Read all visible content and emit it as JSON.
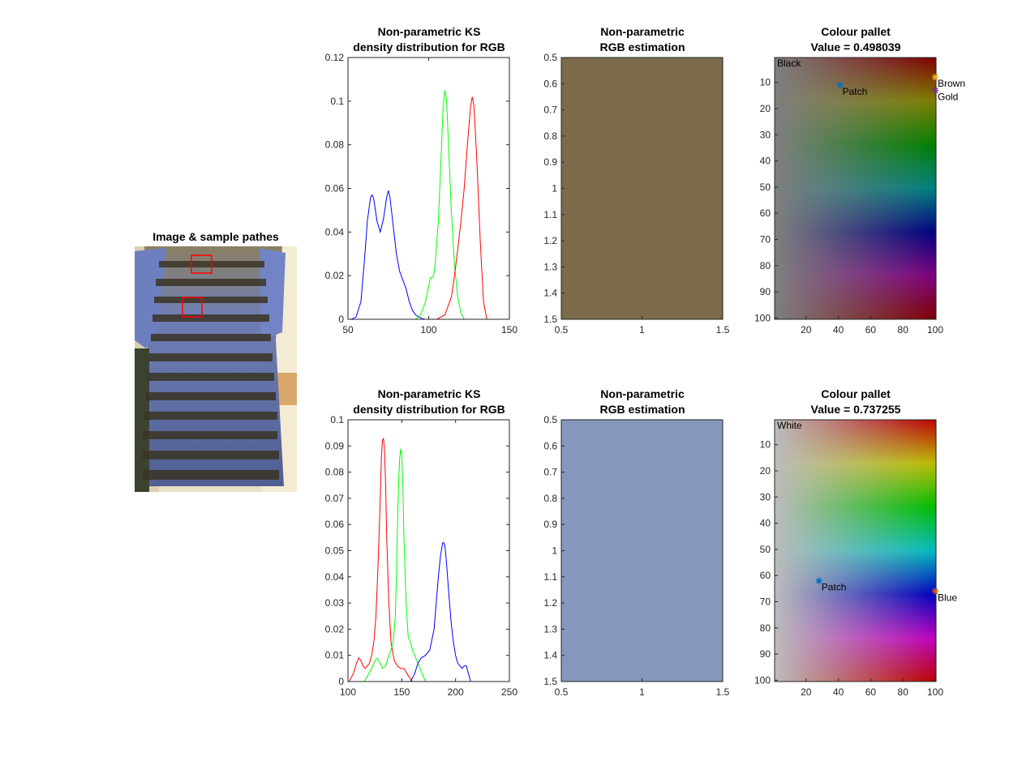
{
  "figure": {
    "image_panel": {
      "title": "Image & sample pathes"
    },
    "rows": [
      {
        "density": {
          "title": [
            "Non-parametric KS",
            "density distribution for RGB"
          ],
          "xlim": [
            50,
            150
          ],
          "ylim": [
            0,
            0.12
          ],
          "xticks": [
            50,
            100,
            150
          ],
          "yticks": [
            0,
            0.02,
            0.04,
            0.06,
            0.08,
            0.1,
            0.12
          ]
        },
        "estimation": {
          "title": [
            "Non-parametric",
            "RGB estimation"
          ],
          "color": "#7b6b4b",
          "xticks": [
            "0.5",
            "1",
            "1.5"
          ],
          "yticks": [
            "0.5",
            "0.6",
            "0.7",
            "0.8",
            "0.9",
            "1",
            "1.1",
            "1.2",
            "1.3",
            "1.4",
            "1.5"
          ]
        },
        "palette": {
          "title_line1": "Colour pallet",
          "title_line2": "Value = 0.498039",
          "value": 0.498039,
          "corner_label": "Black",
          "xticks": [
            "20",
            "40",
            "60",
            "80",
            "100"
          ],
          "yticks": [
            "10",
            "20",
            "30",
            "40",
            "50",
            "60",
            "70",
            "80",
            "90",
            "100"
          ],
          "markers": [
            {
              "label": "Patch",
              "x": 41,
              "y": 11,
              "color": "#0072bd"
            },
            {
              "label": "Brown",
              "x": 100,
              "y": 8,
              "color": "#edb120"
            },
            {
              "label": "Gold",
              "x": 100,
              "y": 13,
              "color": "#7e2f8e"
            }
          ]
        }
      },
      {
        "density": {
          "title": [
            "Non-parametric KS",
            "density distribution for RGB"
          ],
          "xlim": [
            100,
            250
          ],
          "ylim": [
            0,
            0.1
          ],
          "xticks": [
            100,
            150,
            200,
            250
          ],
          "yticks": [
            0,
            0.01,
            0.02,
            0.03,
            0.04,
            0.05,
            0.06,
            0.07,
            0.08,
            0.09,
            0.1
          ]
        },
        "estimation": {
          "title": [
            "Non-parametric",
            "RGB estimation"
          ],
          "color": "#8697bd",
          "xticks": [
            "0.5",
            "1",
            "1.5"
          ],
          "yticks": [
            "0.5",
            "0.6",
            "0.7",
            "0.8",
            "0.9",
            "1",
            "1.1",
            "1.2",
            "1.3",
            "1.4",
            "1.5"
          ]
        },
        "palette": {
          "title_line1": "Colour pallet",
          "title_line2": "Value = 0.737255",
          "value": 0.737255,
          "corner_label": "White",
          "xticks": [
            "20",
            "40",
            "60",
            "80",
            "100"
          ],
          "yticks": [
            "10",
            "20",
            "30",
            "40",
            "50",
            "60",
            "70",
            "80",
            "90",
            "100"
          ],
          "markers": [
            {
              "label": "Patch",
              "x": 28,
              "y": 62,
              "color": "#0072bd"
            },
            {
              "label": "Blue",
              "x": 100,
              "y": 66,
              "color": "#d95319"
            }
          ]
        }
      }
    ]
  },
  "chart_data": [
    {
      "type": "line",
      "title": "Non-parametric KS density distribution for RGB",
      "xlim": [
        50,
        150
      ],
      "ylim": [
        0,
        0.12
      ],
      "series": [
        {
          "color": "#0000ff",
          "x": [
            52,
            55,
            58,
            60,
            62,
            64,
            65,
            66,
            68,
            70,
            72,
            74,
            75,
            76,
            78,
            80,
            82,
            84,
            86,
            88,
            90,
            92,
            94,
            96,
            98
          ],
          "y": [
            0,
            0.001,
            0.008,
            0.025,
            0.045,
            0.056,
            0.057,
            0.055,
            0.045,
            0.04,
            0.046,
            0.056,
            0.059,
            0.056,
            0.043,
            0.03,
            0.022,
            0.018,
            0.014,
            0.008,
            0.004,
            0.002,
            0.001,
            0.0003,
            0
          ]
        },
        {
          "color": "#00ff00",
          "x": [
            92,
            95,
            98,
            100,
            101,
            102,
            103,
            104,
            106,
            108,
            109,
            110,
            111,
            112,
            114,
            116,
            118,
            120,
            122
          ],
          "y": [
            0,
            0.002,
            0.008,
            0.015,
            0.019,
            0.019,
            0.02,
            0.025,
            0.045,
            0.08,
            0.098,
            0.105,
            0.101,
            0.085,
            0.05,
            0.025,
            0.01,
            0.003,
            0
          ]
        },
        {
          "color": "#ff0000",
          "x": [
            105,
            110,
            114,
            116,
            118,
            120,
            122,
            124,
            126,
            127,
            128,
            129,
            130,
            132,
            134,
            136
          ],
          "y": [
            0,
            0.002,
            0.01,
            0.02,
            0.032,
            0.045,
            0.06,
            0.08,
            0.098,
            0.102,
            0.098,
            0.085,
            0.07,
            0.035,
            0.008,
            0
          ]
        }
      ]
    },
    {
      "type": "line",
      "title": "Non-parametric KS density distribution for RGB",
      "xlim": [
        100,
        250
      ],
      "ylim": [
        0,
        0.1
      ],
      "series": [
        {
          "color": "#ff0000",
          "x": [
            101,
            105,
            108,
            110,
            112,
            114,
            116,
            118,
            120,
            122,
            124,
            126,
            128,
            130,
            131,
            132,
            133,
            134,
            135,
            136,
            138,
            140,
            143,
            146,
            149,
            152,
            155,
            158,
            160
          ],
          "y": [
            0,
            0.003,
            0.007,
            0.009,
            0.008,
            0.006,
            0.005,
            0.006,
            0.007,
            0.01,
            0.015,
            0.025,
            0.045,
            0.07,
            0.085,
            0.092,
            0.093,
            0.088,
            0.075,
            0.055,
            0.03,
            0.015,
            0.008,
            0.006,
            0.005,
            0.005,
            0.003,
            0.001,
            0
          ]
        },
        {
          "color": "#00ff00",
          "x": [
            115,
            118,
            122,
            125,
            127,
            130,
            132,
            135,
            138,
            140,
            142,
            144,
            145,
            146,
            147,
            148,
            149,
            150,
            151,
            152,
            154,
            156,
            158,
            160,
            162,
            164,
            166,
            168,
            170,
            172
          ],
          "y": [
            0,
            0.002,
            0.005,
            0.008,
            0.009,
            0.007,
            0.005,
            0.006,
            0.01,
            0.012,
            0.015,
            0.025,
            0.04,
            0.06,
            0.075,
            0.085,
            0.089,
            0.086,
            0.075,
            0.055,
            0.03,
            0.017,
            0.015,
            0.012,
            0.01,
            0.008,
            0.006,
            0.004,
            0.002,
            0
          ]
        },
        {
          "color": "#0000ff",
          "x": [
            158,
            162,
            165,
            168,
            172,
            176,
            180,
            182,
            184,
            186,
            188,
            189,
            190,
            191,
            192,
            194,
            196,
            198,
            200,
            202,
            204,
            206,
            208,
            210,
            212,
            214
          ],
          "y": [
            0,
            0.003,
            0.007,
            0.009,
            0.01,
            0.012,
            0.02,
            0.03,
            0.04,
            0.048,
            0.053,
            0.053,
            0.052,
            0.048,
            0.043,
            0.032,
            0.022,
            0.015,
            0.01,
            0.007,
            0.006,
            0.005,
            0.006,
            0.006,
            0.003,
            0
          ]
        }
      ]
    },
    {
      "type": "heatmap",
      "title": "Non-parametric RGB estimation",
      "color": "#7b6b4b",
      "xlim": [
        0.5,
        1.5
      ],
      "ylim": [
        0.5,
        1.5
      ]
    },
    {
      "type": "heatmap",
      "title": "Non-parametric RGB estimation",
      "color": "#8697bd",
      "xlim": [
        0.5,
        1.5
      ],
      "ylim": [
        0.5,
        1.5
      ]
    },
    {
      "type": "heatmap",
      "title": "Colour pallet Value = 0.498039",
      "value": 0.498039,
      "xlim": [
        1,
        100
      ],
      "ylim": [
        1,
        100
      ]
    },
    {
      "type": "heatmap",
      "title": "Colour pallet Value = 0.737255",
      "value": 0.737255,
      "xlim": [
        1,
        100
      ],
      "ylim": [
        1,
        100
      ]
    }
  ]
}
